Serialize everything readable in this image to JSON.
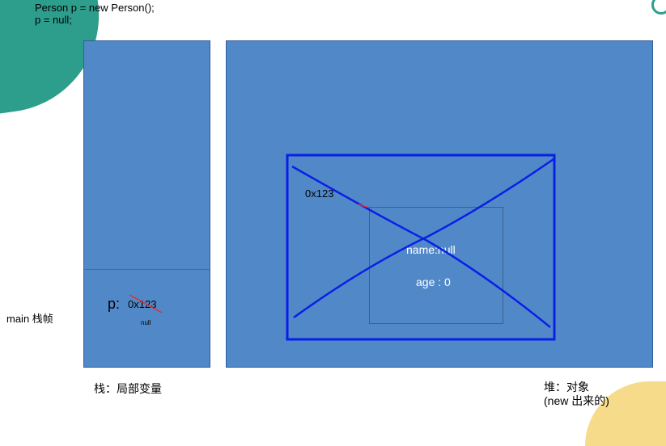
{
  "code": {
    "line1": "Person p = new Person();",
    "line2": "p = null;"
  },
  "stack": {
    "frame_label": "main 栈帧",
    "var_name": "p:",
    "var_value": "0x123",
    "new_value": "null",
    "caption": "栈：局部变量"
  },
  "heap": {
    "caption_line1": "堆：对象",
    "caption_line2": "(new 出来的)",
    "object_address": "0x123",
    "field_name": "name:null",
    "field_age": "age : 0"
  },
  "colors": {
    "panel_fill": "#5189c8",
    "annotation_blue": "#0a1fe6",
    "divider_red": "#e03030",
    "accent_teal": "#2e9e8c",
    "accent_yellow": "#f6dc8a"
  }
}
